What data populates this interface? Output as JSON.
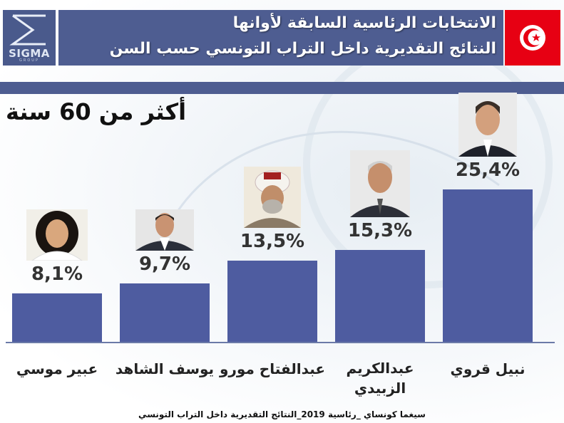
{
  "logo": {
    "text": "SIGMA",
    "subtext": "GROUP"
  },
  "header": {
    "line1": "الانتخابات الرئاسية السابقة لأوانها",
    "line2": "النتائج التقديرية داخل التراب التونسي حسب السن"
  },
  "subtitle": "أكثر من 60 سنة",
  "footer": "سيغما كونساي _رئاسية 2019_النتائج التقديرية داخل التراب التونسي",
  "colors": {
    "bar": "#4e5ca0",
    "header": "#4e5d91",
    "flag": "#e70013"
  },
  "chart_data": {
    "type": "bar",
    "categories": [
      "عبير موسي",
      "يوسف الشاهد",
      "عبدالفتاح مورو",
      "عبدالكريم الزبيدي",
      "نبيل قروي"
    ],
    "values": [
      8.1,
      9.7,
      13.5,
      15.3,
      25.4
    ],
    "value_labels": [
      "8,1%",
      "9,7%",
      "13,5%",
      "15,3%",
      "25,4%"
    ],
    "title": "أكثر من 60 سنة",
    "unit": "%"
  }
}
